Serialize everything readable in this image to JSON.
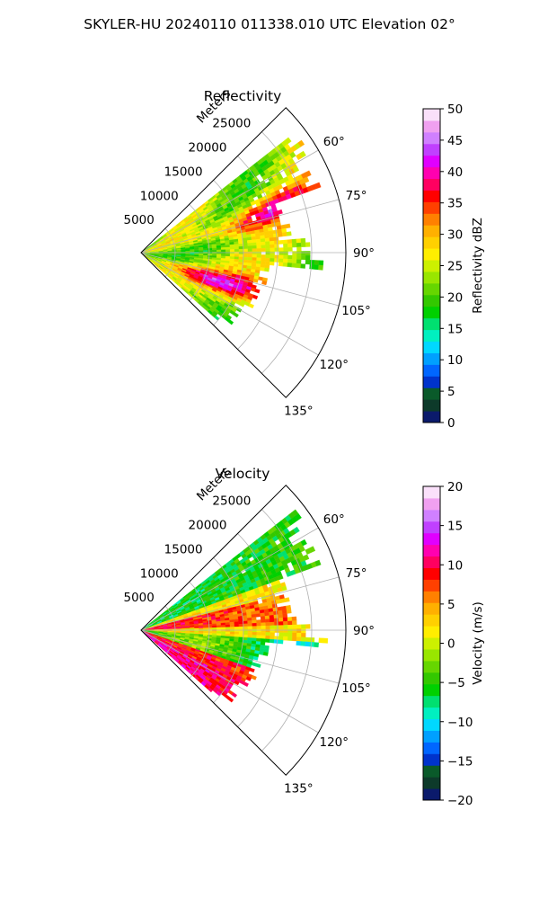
{
  "suptitle": "SKYLER-HU  20240110  011338.010 UTC Elevation 02°",
  "chart_data": [
    {
      "type": "heatmap",
      "title": "Reflectivity",
      "range_label": "Meters",
      "range_ticks": [
        5000,
        10000,
        15000,
        20000,
        25000
      ],
      "range_tick_labels": [
        "5000",
        "10000",
        "15000",
        "20000",
        "25000"
      ],
      "angle_ticks": [
        60,
        75,
        90,
        105,
        120,
        135
      ],
      "angle_tick_labels": [
        "60°",
        "75°",
        "90°",
        "105°",
        "120°",
        "135°"
      ],
      "theta_range": [
        45,
        135
      ],
      "r_range": [
        0,
        30000
      ],
      "grid": true,
      "colorbar": {
        "label": "Reflectivity dBZ",
        "vmin": 0,
        "vmax": 50,
        "ticks": [
          0,
          5,
          10,
          15,
          20,
          25,
          30,
          35,
          40,
          45,
          50
        ],
        "tick_labels": [
          "0",
          "5",
          "10",
          "15",
          "20",
          "25",
          "30",
          "35",
          "40",
          "45",
          "50"
        ],
        "colors": [
          "#0b1a6b",
          "#0d3a2a",
          "#0a5a2a",
          "#0033cc",
          "#0066ff",
          "#00a0ff",
          "#00d8ff",
          "#00f0c0",
          "#00e070",
          "#00d000",
          "#33c800",
          "#66d600",
          "#99e600",
          "#ccf000",
          "#ffee00",
          "#ffd000",
          "#ffb000",
          "#ff8000",
          "#ff4000",
          "#ff0000",
          "#ff0060",
          "#ff00b0",
          "#e000ff",
          "#c040ff",
          "#d080ff",
          "#f0a0f0",
          "#fae0fa"
        ]
      }
    },
    {
      "type": "heatmap",
      "title": "Velocity",
      "range_label": "Meters",
      "range_ticks": [
        5000,
        10000,
        15000,
        20000,
        25000
      ],
      "range_tick_labels": [
        "5000",
        "10000",
        "15000",
        "20000",
        "25000"
      ],
      "angle_ticks": [
        60,
        75,
        90,
        105,
        120,
        135
      ],
      "angle_tick_labels": [
        "60°",
        "75°",
        "90°",
        "105°",
        "120°",
        "135°"
      ],
      "theta_range": [
        45,
        135
      ],
      "r_range": [
        0,
        30000
      ],
      "grid": true,
      "colorbar": {
        "label": "Velocity (m/s)",
        "vmin": -20,
        "vmax": 20,
        "ticks": [
          -20,
          -15,
          -10,
          -5,
          0,
          5,
          10,
          15,
          20
        ],
        "tick_labels": [
          "−20",
          "−15",
          "−10",
          "−5",
          "0",
          "5",
          "10",
          "15",
          "20"
        ],
        "colors": [
          "#0b1a6b",
          "#0d3a2a",
          "#0a5a2a",
          "#0033cc",
          "#0066ff",
          "#00a0ff",
          "#00d8ff",
          "#00f0c0",
          "#00e070",
          "#00d000",
          "#33c800",
          "#66d600",
          "#99e600",
          "#ccf000",
          "#ffee00",
          "#ffd000",
          "#ffb000",
          "#ff8000",
          "#ff4000",
          "#ff0000",
          "#ff0060",
          "#ff00b0",
          "#e000ff",
          "#c040ff",
          "#d080ff",
          "#f0a0f0",
          "#fae0fa"
        ]
      }
    }
  ]
}
